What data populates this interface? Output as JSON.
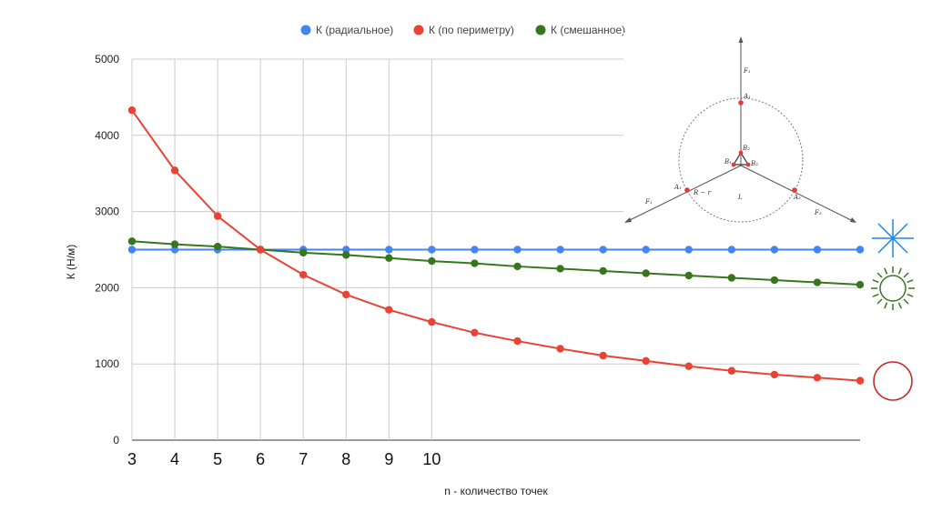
{
  "chart_data": {
    "type": "line",
    "title": "",
    "xlabel": "n - количество точек",
    "ylabel": "К (Н/м)",
    "x": [
      3,
      4,
      5,
      6,
      7,
      8,
      9,
      10,
      11,
      12,
      13,
      14,
      15,
      16,
      17,
      18,
      19,
      20
    ],
    "xtick_labels": [
      "3",
      "4",
      "5",
      "6",
      "7",
      "8",
      "9",
      "10"
    ],
    "yticks": [
      0,
      1000,
      2000,
      3000,
      4000,
      5000
    ],
    "ylim": [
      0,
      5000
    ],
    "xlim": [
      3,
      20
    ],
    "grid": true,
    "legend_position": "top",
    "series": [
      {
        "name": "К (радиальное)",
        "color": "#4285f4",
        "values": [
          2500,
          2500,
          2500,
          2500,
          2500,
          2500,
          2500,
          2500,
          2500,
          2500,
          2500,
          2500,
          2500,
          2500,
          2500,
          2500,
          2500,
          2500
        ]
      },
      {
        "name": "К (по периметру)",
        "color": "#ea4335",
        "values": [
          4330,
          3540,
          2940,
          2500,
          2170,
          1910,
          1710,
          1550,
          1410,
          1300,
          1200,
          1110,
          1040,
          970,
          910,
          860,
          820,
          780
        ]
      },
      {
        "name": "К (смешанное)",
        "color": "#38761d",
        "values": [
          2610,
          2570,
          2540,
          2500,
          2460,
          2430,
          2390,
          2350,
          2320,
          2280,
          2250,
          2220,
          2190,
          2160,
          2130,
          2100,
          2070,
          2040
        ]
      }
    ]
  },
  "diagram": {
    "labels": [
      "F₁",
      "A₁",
      "B₁",
      "B₂",
      "B₃",
      "F₁",
      "A₁",
      "R − r",
      "L",
      "A₃",
      "F₃"
    ],
    "colors": {
      "blue_icon": "#1e88e5",
      "green_icon": "#38761d",
      "red_icon": "#c62828"
    },
    "icons": [
      "radial-star-icon",
      "sun-ring-icon",
      "circle-ring-icon"
    ]
  }
}
